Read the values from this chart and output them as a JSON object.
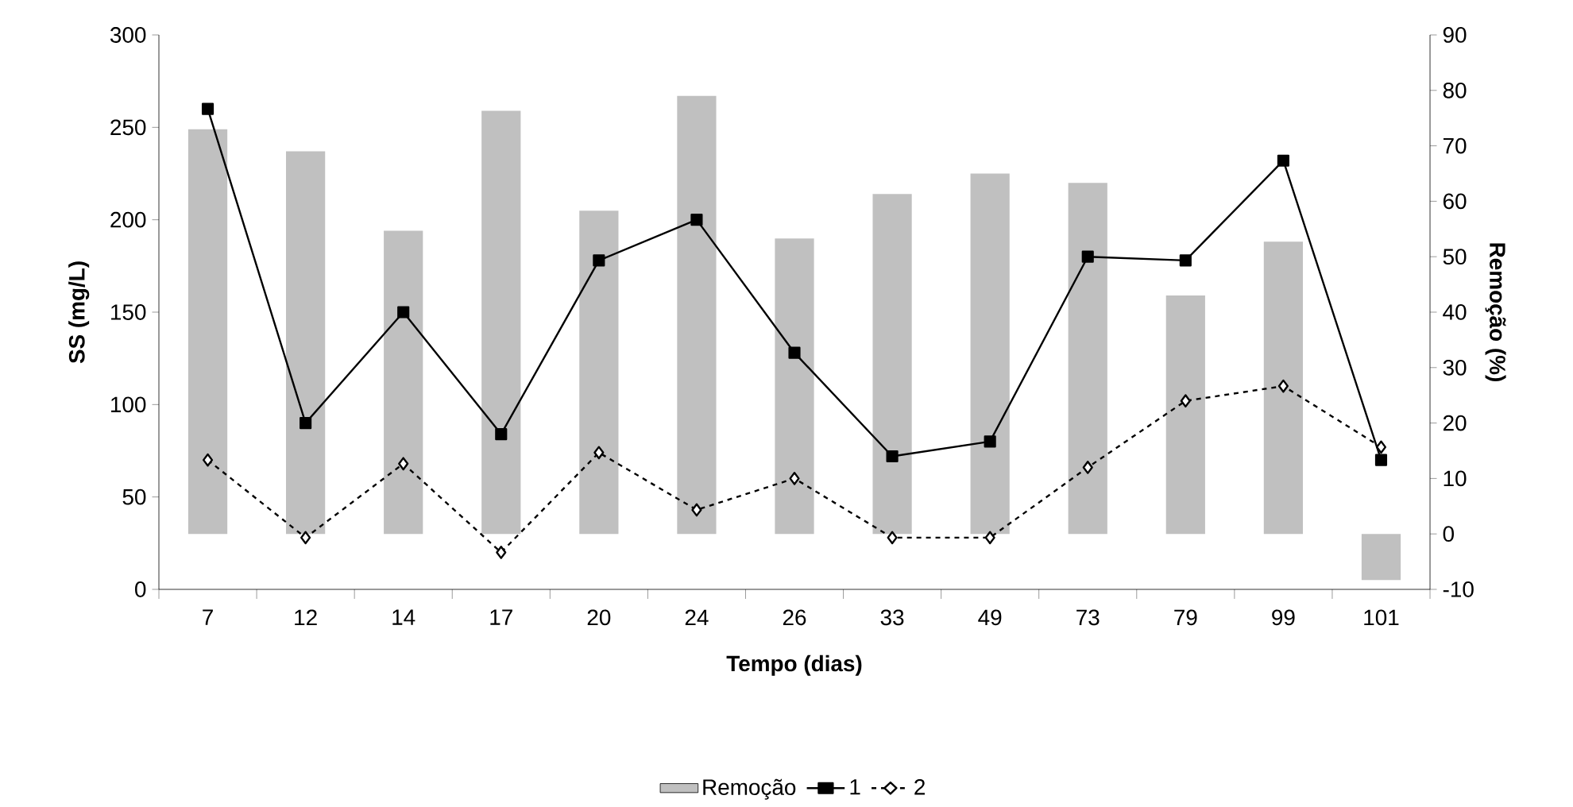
{
  "chart_data": {
    "type": "line",
    "xlabel": "Tempo (dias)",
    "ylabel": "SS (mg/L)",
    "y2label": "Remoção (%)",
    "categories": [
      "7",
      "12",
      "14",
      "17",
      "20",
      "24",
      "26",
      "33",
      "49",
      "73",
      "79",
      "99",
      "101"
    ],
    "series": [
      {
        "name": "Remoção",
        "type": "bar",
        "axis": "y2",
        "color": "#c0c0c0",
        "values": [
          73,
          69,
          54.7,
          76.3,
          58.3,
          79,
          53.3,
          61.3,
          65,
          63.3,
          43,
          52.7,
          -8.3
        ]
      },
      {
        "name": "1",
        "color": "#000000",
        "marker": "square",
        "line_style": "solid",
        "values": [
          260,
          90,
          150,
          84,
          178,
          200,
          128,
          72,
          80,
          180,
          178,
          232,
          70
        ]
      },
      {
        "name": "2",
        "color": "#000000",
        "marker": "diamond",
        "line_style": "dashed",
        "values": [
          70,
          28,
          68,
          20,
          74,
          43,
          60,
          28,
          28,
          66,
          102,
          110,
          77
        ]
      }
    ],
    "ylim": [
      0,
      300
    ],
    "yticks": [
      0,
      50,
      100,
      150,
      200,
      250,
      300
    ],
    "y2lim": [
      -10,
      90
    ],
    "y2ticks": [
      -10,
      0,
      10,
      20,
      30,
      40,
      50,
      60,
      70,
      80,
      90
    ],
    "legend": "bottom"
  }
}
